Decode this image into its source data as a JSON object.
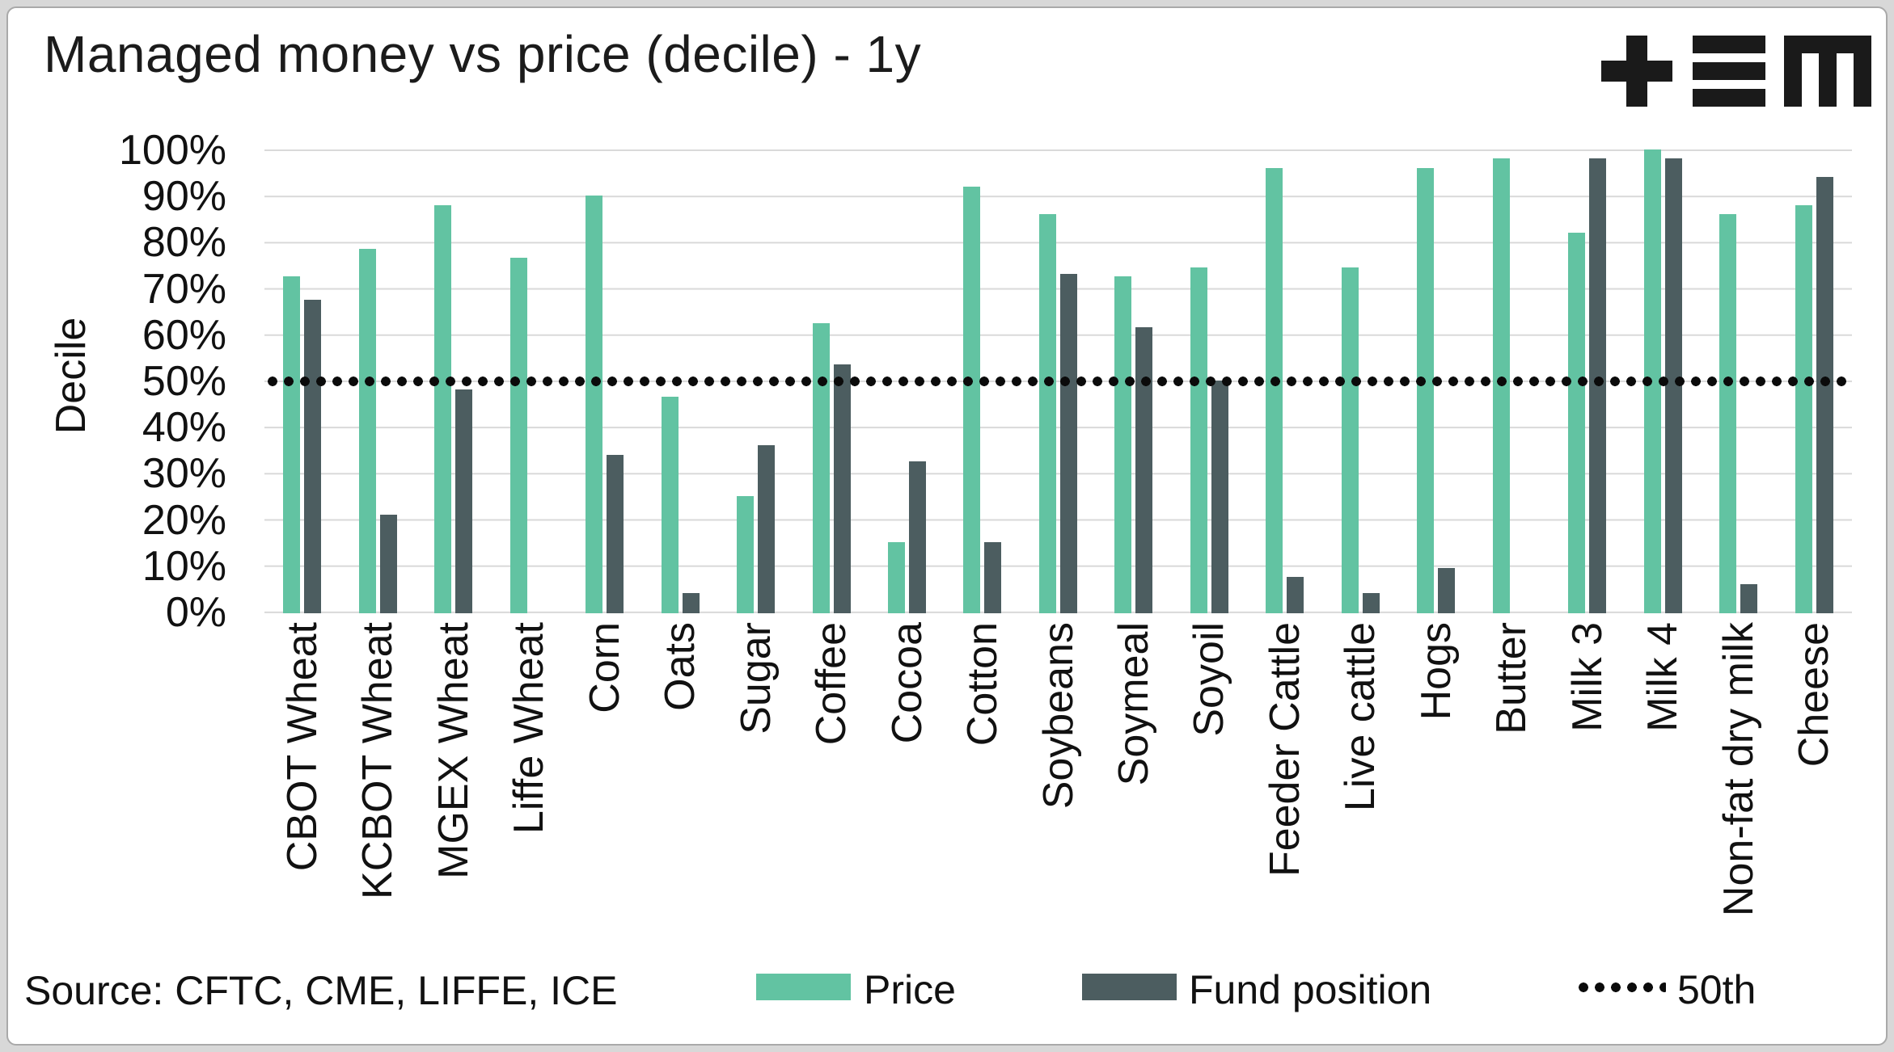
{
  "title": "Managed money vs price (decile) - 1y",
  "source": {
    "text": "Source: CFTC, CME, LIFFE, ICE"
  },
  "legend": {
    "price": "Price",
    "fund": "Fund position",
    "ref": "50th"
  },
  "colors": {
    "price": "#62c3a2",
    "fund": "#4c5d60",
    "gridline": "#d9d9d9",
    "reference": "#0b0b0b"
  },
  "logo": {
    "name": "plus-equals-m-logo"
  },
  "chart_data": {
    "type": "bar",
    "title": "Managed money vs price (decile) - 1y",
    "xlabel": "",
    "ylabel": "Decile",
    "ylim": [
      0,
      100
    ],
    "grid": true,
    "legend_position": "bottom",
    "y_ticks": [
      "100%",
      "90%",
      "80%",
      "70%",
      "60%",
      "50%",
      "40%",
      "30%",
      "20%",
      "10%",
      "0%"
    ],
    "categories": [
      "CBOT Wheat",
      "KCBOT Wheat",
      "MGEX Wheat",
      "Liffe Wheat",
      "Corn",
      "Oats",
      "Sugar",
      "Coffee",
      "Cocoa",
      "Cotton",
      "Soybeans",
      "Soymeal",
      "Soyoil",
      "Feeder Cattle",
      "Live cattle",
      "Hogs",
      "Butter",
      "Milk 3",
      "Milk 4",
      "Non-fat dry milk",
      "Cheese"
    ],
    "series": [
      {
        "name": "Price",
        "color": "#62c3a2",
        "values": [
          72.5,
          78.5,
          88,
          76.5,
          90,
          46.5,
          25,
          62.5,
          15,
          92,
          86,
          72.5,
          74.5,
          96,
          74.5,
          96,
          98,
          82,
          100,
          86,
          88
        ]
      },
      {
        "name": "Fund position",
        "color": "#4c5d60",
        "values": [
          67.5,
          21,
          48,
          null,
          34,
          4,
          36,
          53.5,
          32.5,
          15,
          73,
          61.5,
          50,
          7.5,
          4,
          9.5,
          null,
          98,
          98,
          6,
          94
        ]
      }
    ],
    "reference_line": {
      "label": "50th",
      "value": 50
    }
  }
}
